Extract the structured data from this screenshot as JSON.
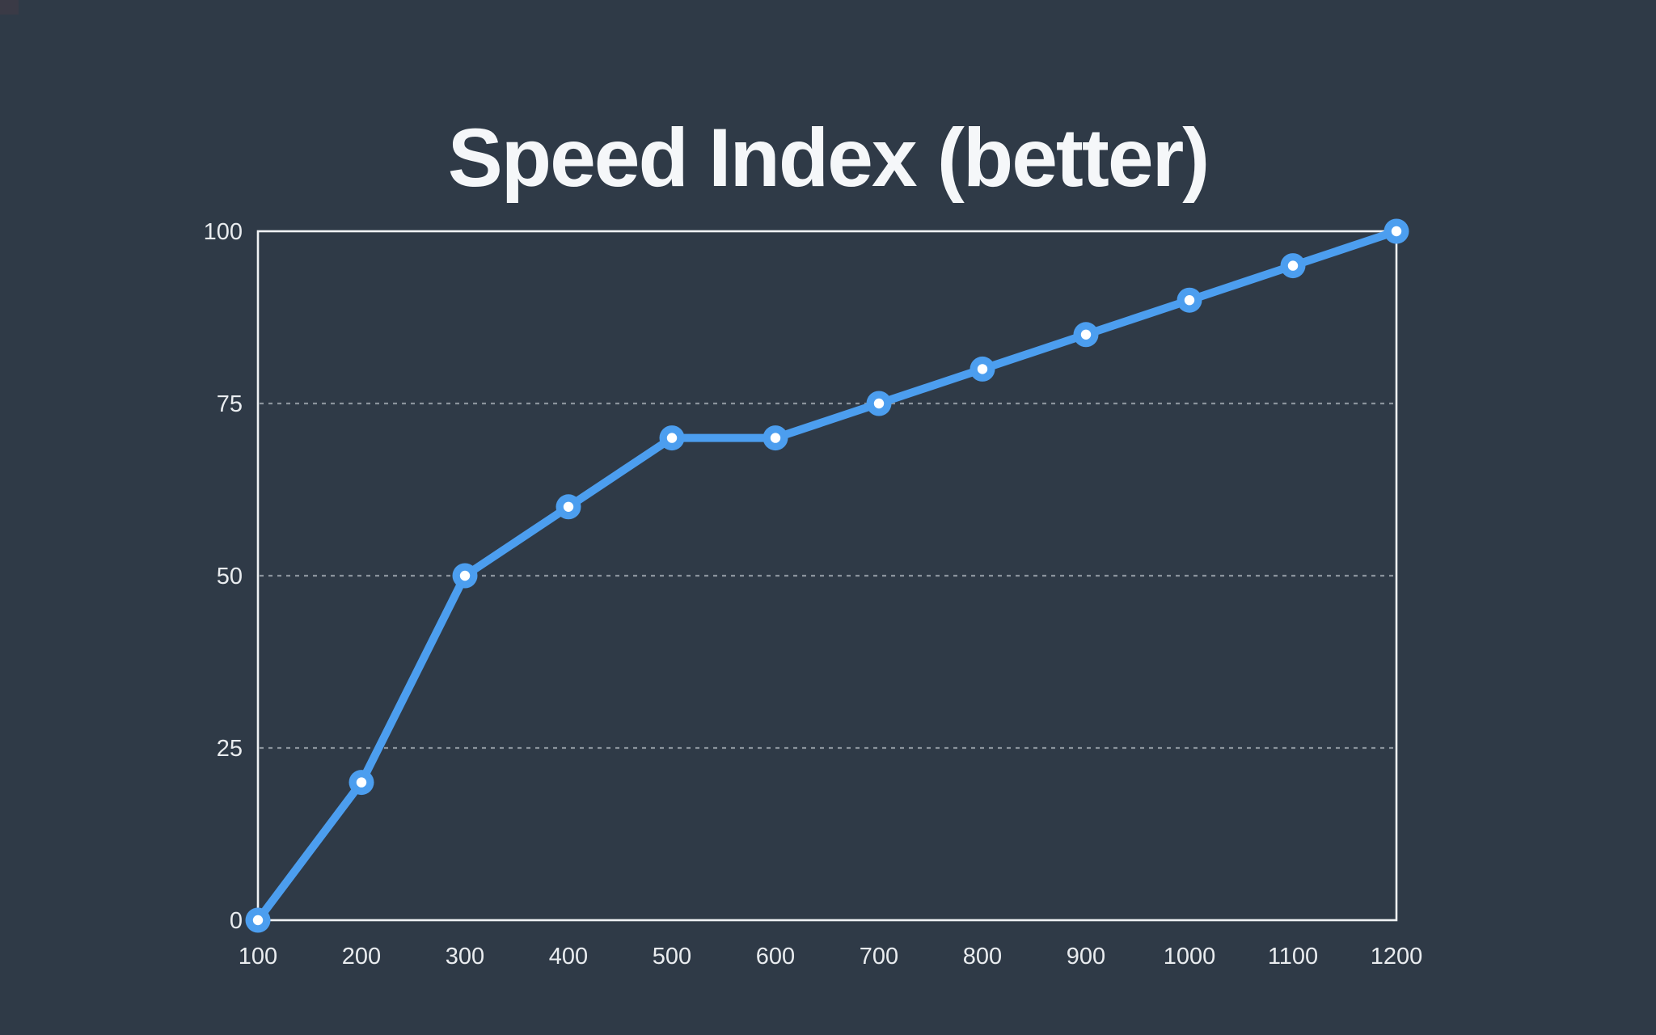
{
  "page": {
    "background_color": "#2F3A47",
    "corner_patch_color": "#3A3A46"
  },
  "chart_data": {
    "type": "line",
    "title": "Speed Index (better)",
    "series": [
      {
        "name": "Speed Index",
        "x": [
          100,
          200,
          300,
          400,
          500,
          600,
          700,
          800,
          900,
          1000,
          1100,
          1200
        ],
        "values": [
          0,
          20,
          50,
          60,
          70,
          70,
          75,
          80,
          85,
          90,
          95,
          100
        ]
      }
    ],
    "x_tick_labels": [
      "100",
      "200",
      "300",
      "400",
      "500",
      "600",
      "700",
      "800",
      "900",
      "1000",
      "1100",
      "1200"
    ],
    "y_tick_labels": [
      "0",
      "25",
      "50",
      "75",
      "100"
    ],
    "y_ticks": [
      0,
      25,
      50,
      75,
      100
    ],
    "grid_y_values": [
      25,
      50,
      75
    ],
    "xlim": [
      100,
      1200
    ],
    "ylim": [
      0,
      100
    ],
    "xlabel": "",
    "ylabel": "",
    "legend": "none",
    "grid_style": "horizontal dotted lines at 25, 50, 75; solid plot border on all four sides",
    "colors": {
      "line": "#4C9EEF",
      "marker_outer": "#4C9EEF",
      "marker_inner": "#FFFFFF",
      "plot_border": "#F0F2F4",
      "gridline": "#9CA3AB",
      "tick_text": "#E9ECEF",
      "title_text": "#F5F7F9"
    }
  }
}
